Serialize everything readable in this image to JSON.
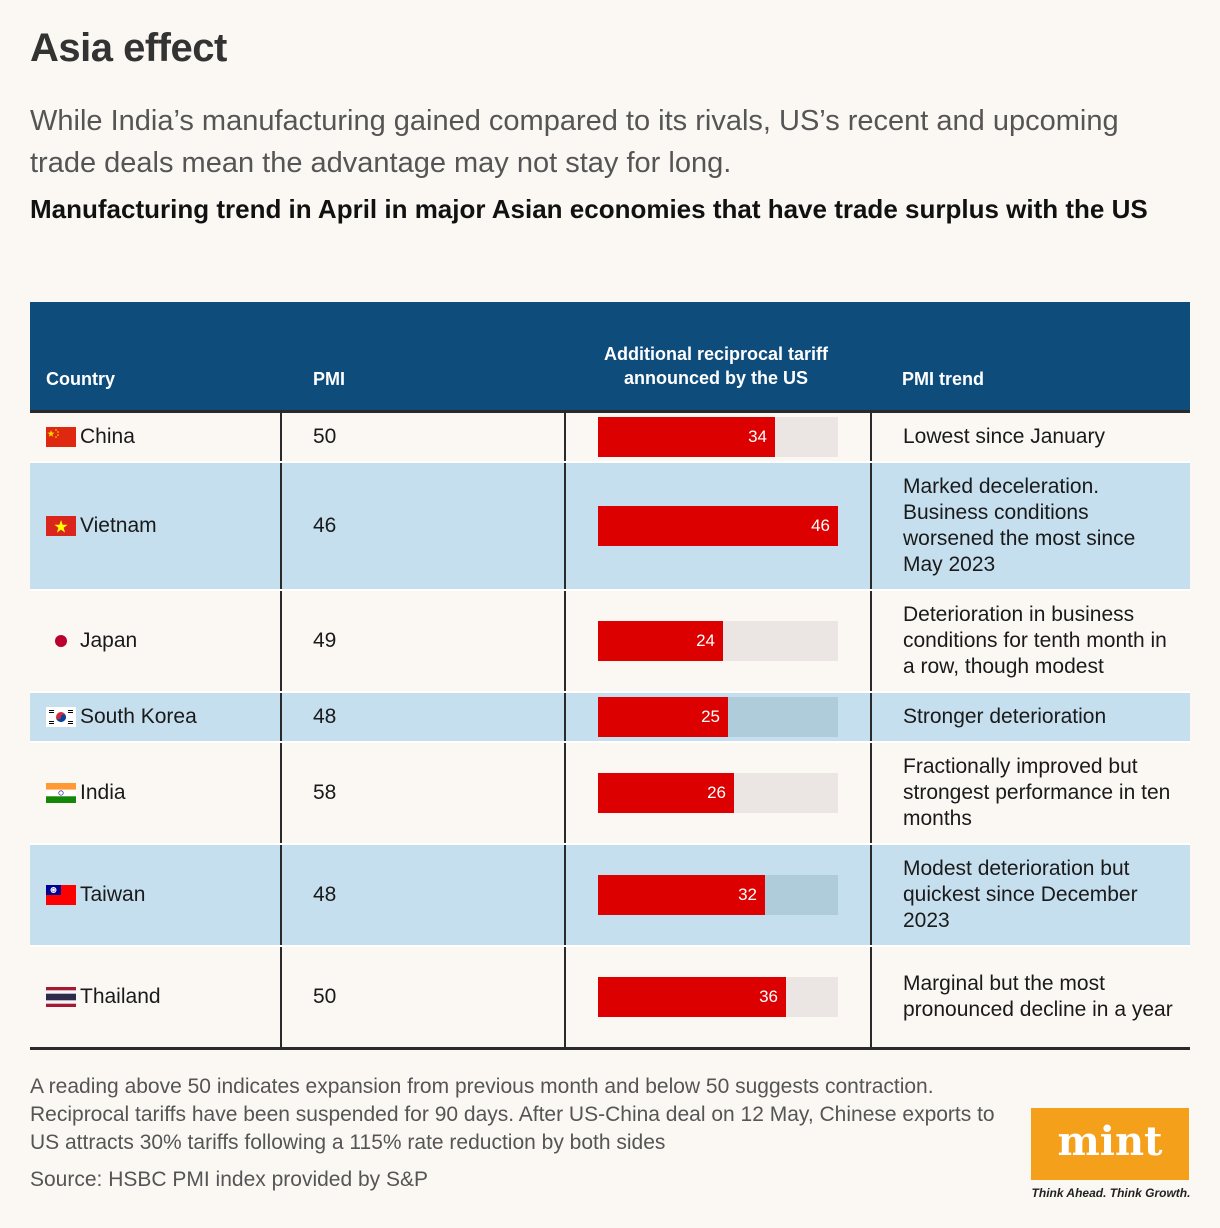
{
  "header": {
    "title": "Asia effect",
    "subtitle": "While India’s manufacturing gained compared to its rivals, US’s recent and upcoming trade deals mean the advantage may not stay for long.",
    "chart_title": "Manufacturing trend in April in major Asian economies that have trade surplus with the US"
  },
  "columns": {
    "country": "Country",
    "pmi": "PMI",
    "tariff": "Additional reciprocal tariff announced by the US",
    "trend": "PMI trend"
  },
  "rows": [
    {
      "country": "China",
      "flag": "china-flag-icon",
      "pmi": "50",
      "tariff": 34,
      "tariff_label": "34",
      "trend": "Lowest since January"
    },
    {
      "country": "Vietnam",
      "flag": "vietnam-flag-icon",
      "pmi": "46",
      "tariff": 46,
      "tariff_label": "46",
      "trend": "Marked deceleration. Business conditions worsened the most since May 2023"
    },
    {
      "country": "Japan",
      "flag": "japan-flag-icon",
      "pmi": "49",
      "tariff": 24,
      "tariff_label": "24",
      "trend": "Deterioration in business conditions for tenth month in a row, though modest"
    },
    {
      "country": "South Korea",
      "flag": "south-korea-flag-icon",
      "pmi": "48",
      "tariff": 25,
      "tariff_label": "25",
      "trend": "Stronger deterioration"
    },
    {
      "country": "India",
      "flag": "india-flag-icon",
      "pmi": "58",
      "tariff": 26,
      "tariff_label": "26",
      "trend": "Fractionally improved but strongest performance in ten months"
    },
    {
      "country": "Taiwan",
      "flag": "taiwan-flag-icon",
      "pmi": "48",
      "tariff": 32,
      "tariff_label": "32",
      "trend": "Modest deterioration but quickest since December 2023"
    },
    {
      "country": "Thailand",
      "flag": "thailand-flag-icon",
      "pmi": "50",
      "tariff": 36,
      "tariff_label": "36",
      "trend": "Marginal but the most pronounced decline in a year"
    }
  ],
  "chart_data": {
    "type": "table",
    "title": "Manufacturing trend in April in major Asian economies that have trade surplus with the US",
    "categories": [
      "China",
      "Vietnam",
      "Japan",
      "South Korea",
      "India",
      "Taiwan",
      "Thailand"
    ],
    "series": [
      {
        "name": "PMI",
        "values": [
          50,
          46,
          49,
          48,
          58,
          48,
          50
        ]
      },
      {
        "name": "Additional reciprocal tariff announced by the US",
        "values": [
          34,
          46,
          24,
          25,
          26,
          32,
          36
        ]
      }
    ],
    "bar_max": 46
  },
  "footer": {
    "note": "A reading above 50 indicates expansion from previous month and below 50 suggests contraction. Reciprocal tariffs have been suspended for 90 days. After US-China deal on 12 May, Chinese exports to US attracts 30% tariffs following a 115% rate reduction by both sides",
    "source": "Source: HSBC PMI index provided by S&P",
    "logo_text": "mint",
    "tagline": "Think Ahead. Think Growth."
  },
  "colors": {
    "header_bg": "#0e4c7b",
    "bar": "#dc0000",
    "alt_row": "#c5dfee",
    "logo_bg": "#f5a01a"
  }
}
